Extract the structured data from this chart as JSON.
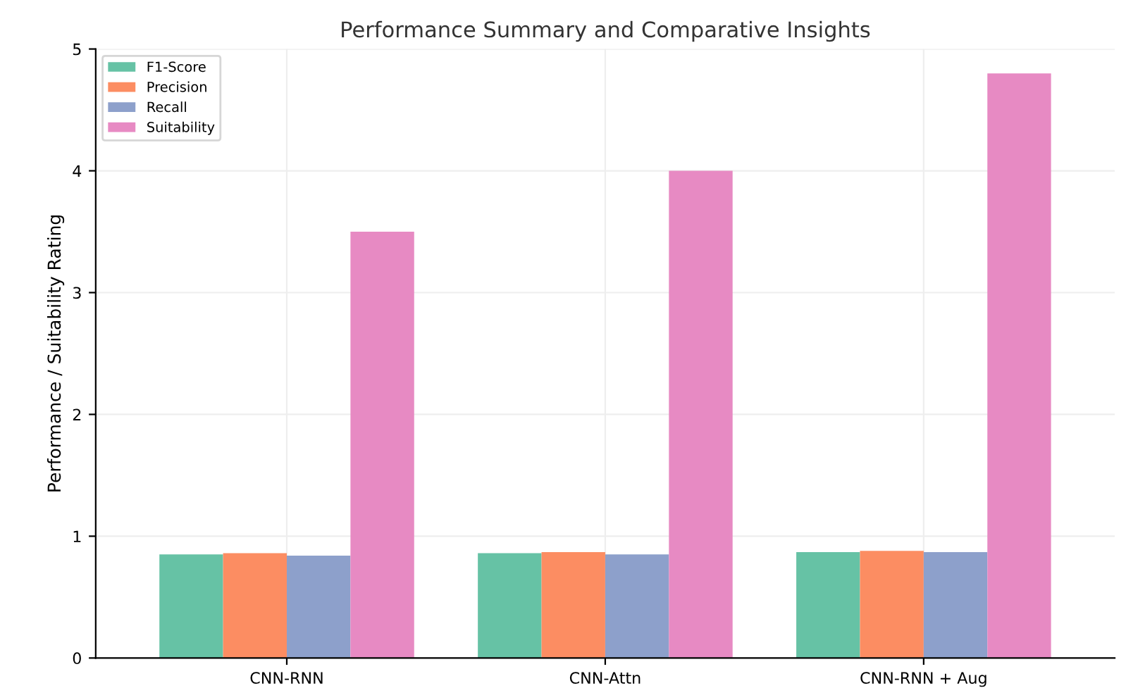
{
  "chart_data": {
    "type": "bar",
    "title": "Performance Summary and Comparative Insights",
    "ylabel": "Performance / Suitability Rating",
    "categories": [
      "CNN-RNN",
      "CNN-Attn",
      "CNN-RNN + Aug"
    ],
    "series": [
      {
        "name": "F1-Score",
        "color": "#66c2a5",
        "values": [
          0.85,
          0.86,
          0.87
        ]
      },
      {
        "name": "Precision",
        "color": "#fc8d62",
        "values": [
          0.86,
          0.87,
          0.88
        ]
      },
      {
        "name": "Recall",
        "color": "#8da0cb",
        "values": [
          0.84,
          0.85,
          0.87
        ]
      },
      {
        "name": "Suitability",
        "color": "#e78ac3",
        "values": [
          3.5,
          4.0,
          4.8
        ]
      }
    ],
    "ylim": [
      0,
      5
    ],
    "yticks": [
      0,
      1,
      2,
      3,
      4,
      5
    ],
    "grid": true,
    "legend": "top left"
  }
}
